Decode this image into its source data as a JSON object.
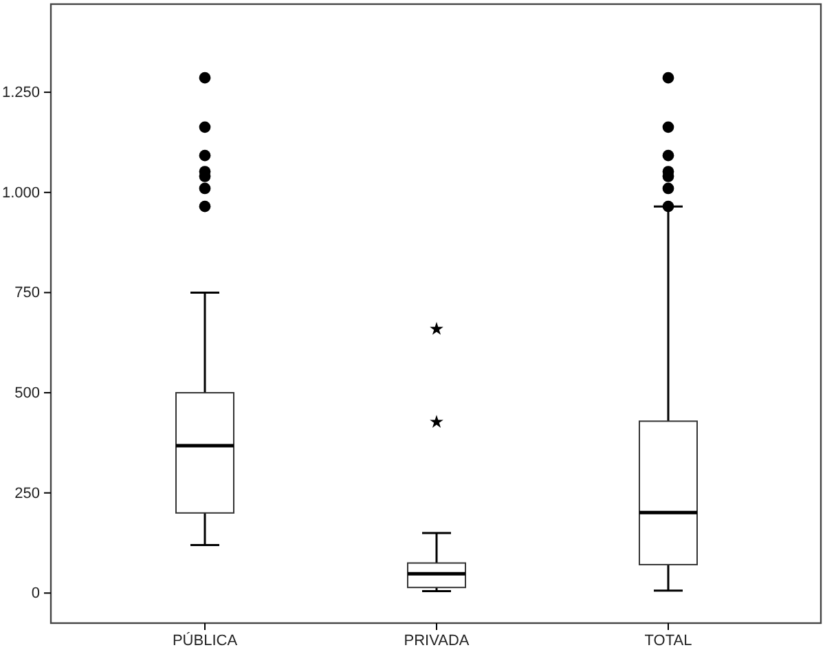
{
  "chart_data": {
    "type": "box",
    "categories": [
      "PÚBLICA",
      "PRIVADA",
      "TOTAL"
    ],
    "ylim": [
      -75,
      1470
    ],
    "yticks": [
      0,
      250,
      500,
      750,
      {
        "value": 1000,
        "label": "1.000"
      },
      {
        "value": 1250,
        "label": "1.250"
      }
    ],
    "grid": false,
    "series": [
      {
        "marker": "circle",
        "boxes": [
          {
            "low": 120,
            "q1": 200,
            "median": 368,
            "q3": 500,
            "high": 750,
            "outliers": [
              965,
              1010,
              1040,
              1052,
              1092,
              1163,
              1286
            ]
          },
          null,
          {
            "low": 6,
            "q1": 71,
            "median": 201,
            "q3": 429,
            "high": 965,
            "outliers": [
              965,
              1010,
              1040,
              1052,
              1092,
              1163,
              1286
            ]
          }
        ]
      },
      {
        "marker": "star",
        "boxes": [
          null,
          {
            "low": 5,
            "q1": 14,
            "median": 48,
            "q3": 75,
            "high": 150,
            "outliers": [
              427,
              659
            ]
          },
          null
        ]
      }
    ]
  }
}
